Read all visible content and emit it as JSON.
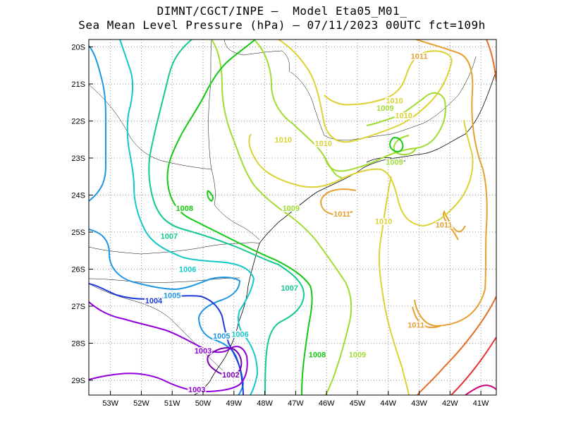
{
  "header": {
    "line1": "DIMNT/CGCT/INPE –  Model Eta05_M01_",
    "line2": "Sea Mean Level Pressure (hPa) – 07/11/2023 00UTC fct=109h"
  },
  "chart_data": {
    "type": "contour-map",
    "variable": "Sea Mean Level Pressure",
    "unit": "hPa",
    "x_range": [
      -53.7,
      -40.5
    ],
    "y_range": [
      -29.4,
      -19.8
    ],
    "grid": true,
    "x_ticks": [
      "53W",
      "52W",
      "51W",
      "50W",
      "49W",
      "48W",
      "47W",
      "46W",
      "45W",
      "44W",
      "43W",
      "42W",
      "41W"
    ],
    "y_ticks": [
      "20S",
      "21S",
      "22S",
      "23S",
      "24S",
      "25S",
      "26S",
      "27S",
      "28S",
      "29S"
    ],
    "colors": {
      "1002": "#7a00b4",
      "1003": "#9100d8",
      "1004": "#1e3cdc",
      "1005": "#1e96e6",
      "1006": "#14c8c8",
      "1007": "#14c896",
      "1008": "#14c814",
      "1009": "#a0dc32",
      "1010": "#dcd232",
      "1011": "#e6a032",
      "1012": "#e66e28",
      "1013": "#e63232",
      "1014": "#d20078"
    },
    "contour_labels": [
      {
        "text": "1011",
        "lon": -43.0,
        "lat": -20.25,
        "level": "1011"
      },
      {
        "text": "1010",
        "lon": -43.8,
        "lat": -21.45,
        "level": "1010"
      },
      {
        "text": "1009",
        "lon": -44.1,
        "lat": -21.65,
        "level": "1009"
      },
      {
        "text": "1010",
        "lon": -43.5,
        "lat": -21.85,
        "level": "1010"
      },
      {
        "text": "1010",
        "lon": -47.4,
        "lat": -22.5,
        "level": "1010"
      },
      {
        "text": "1010",
        "lon": -46.1,
        "lat": -22.6,
        "level": "1010"
      },
      {
        "text": "1009",
        "lon": -43.8,
        "lat": -23.1,
        "level": "1009"
      },
      {
        "text": "1008",
        "lon": -50.6,
        "lat": -24.35,
        "level": "1008"
      },
      {
        "text": "1009",
        "lon": -47.15,
        "lat": -24.35,
        "level": "1009"
      },
      {
        "text": "1011",
        "lon": -45.5,
        "lat": -24.5,
        "level": "1011"
      },
      {
        "text": "1010",
        "lon": -44.15,
        "lat": -24.7,
        "level": "1010"
      },
      {
        "text": "1011",
        "lon": -42.2,
        "lat": -24.8,
        "level": "1011"
      },
      {
        "text": "1007",
        "lon": -51.1,
        "lat": -25.1,
        "level": "1007"
      },
      {
        "text": "1006",
        "lon": -50.5,
        "lat": -26.0,
        "level": "1006"
      },
      {
        "text": "1007",
        "lon": -47.2,
        "lat": -26.5,
        "level": "1007"
      },
      {
        "text": "1005",
        "lon": -51.0,
        "lat": -26.7,
        "level": "1005"
      },
      {
        "text": "1004",
        "lon": -51.6,
        "lat": -26.85,
        "level": "1004"
      },
      {
        "text": "1011",
        "lon": -43.1,
        "lat": -27.5,
        "level": "1011"
      },
      {
        "text": "1005",
        "lon": -49.4,
        "lat": -27.8,
        "level": "1005"
      },
      {
        "text": "1006",
        "lon": -48.8,
        "lat": -27.75,
        "level": "1006"
      },
      {
        "text": "1003",
        "lon": -50.0,
        "lat": -28.2,
        "level": "1003"
      },
      {
        "text": "1008",
        "lon": -46.3,
        "lat": -28.3,
        "level": "1008"
      },
      {
        "text": "1009",
        "lon": -45.0,
        "lat": -28.3,
        "level": "1009"
      },
      {
        "text": "1002",
        "lon": -49.1,
        "lat": -28.85,
        "level": "1002"
      },
      {
        "text": "1003",
        "lon": -50.2,
        "lat": -29.25,
        "level": "1003"
      }
    ]
  }
}
